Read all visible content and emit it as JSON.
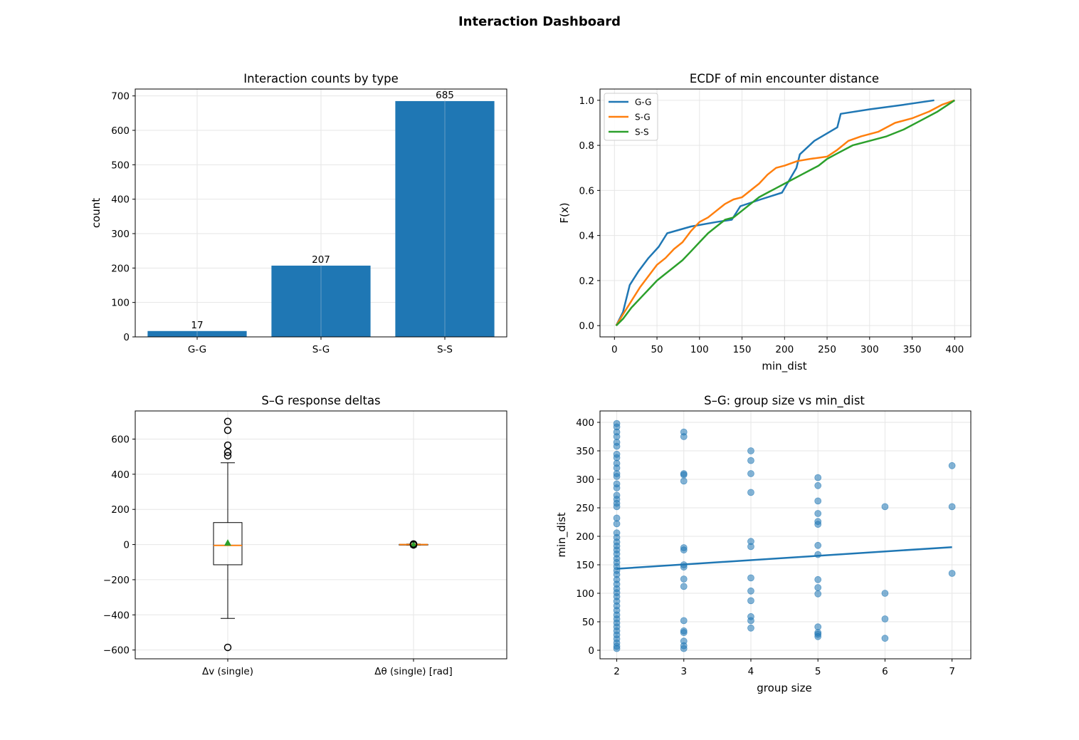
{
  "suptitle": "Interaction Dashboard",
  "colors": {
    "blue": "#1f77b4",
    "orange": "#ff7f0e",
    "green": "#2ca02c",
    "grid": "#e6e6e6"
  },
  "chart_data": [
    {
      "type": "bar",
      "title": "Interaction counts by type",
      "xlabel": "",
      "ylabel": "count",
      "categories": [
        "G-G",
        "S-G",
        "S-S"
      ],
      "values": [
        17,
        207,
        685
      ],
      "bar_labels": [
        "17",
        "207",
        "685"
      ],
      "ylim": [
        0,
        720
      ],
      "yticks": [
        0,
        100,
        200,
        300,
        400,
        500,
        600,
        700
      ],
      "grid": true
    },
    {
      "type": "line",
      "title": "ECDF of min encounter distance",
      "xlabel": "min_dist",
      "ylabel": "F(x)",
      "xlim": [
        -17,
        419
      ],
      "ylim": [
        -0.05,
        1.05
      ],
      "xticks": [
        0,
        50,
        100,
        150,
        200,
        250,
        300,
        350,
        400
      ],
      "yticks": [
        0.0,
        0.2,
        0.4,
        0.6,
        0.8,
        1.0
      ],
      "ytick_labels": [
        "0.0",
        "0.2",
        "0.4",
        "0.6",
        "0.8",
        "1.0"
      ],
      "legend": "top-left",
      "grid": true,
      "series": [
        {
          "name": "G-G",
          "color": "#1f77b4",
          "x": [
            2,
            10,
            18,
            28,
            40,
            52,
            62,
            90,
            120,
            138,
            148,
            172,
            197,
            214,
            218,
            235,
            262,
            266,
            300,
            340,
            376
          ],
          "y": [
            0.0,
            0.06,
            0.18,
            0.24,
            0.3,
            0.35,
            0.41,
            0.44,
            0.46,
            0.47,
            0.53,
            0.56,
            0.59,
            0.7,
            0.76,
            0.82,
            0.88,
            0.94,
            0.96,
            0.98,
            1.0
          ]
        },
        {
          "name": "S-G",
          "color": "#ff7f0e",
          "x": [
            2,
            10,
            20,
            30,
            40,
            50,
            60,
            70,
            80,
            90,
            100,
            110,
            120,
            130,
            140,
            150,
            160,
            170,
            180,
            190,
            200,
            215,
            230,
            250,
            262,
            275,
            290,
            310,
            330,
            350,
            370,
            385,
            400
          ],
          "y": [
            0.0,
            0.05,
            0.11,
            0.17,
            0.22,
            0.27,
            0.3,
            0.34,
            0.37,
            0.42,
            0.46,
            0.48,
            0.51,
            0.54,
            0.56,
            0.57,
            0.6,
            0.63,
            0.67,
            0.7,
            0.71,
            0.73,
            0.74,
            0.75,
            0.78,
            0.82,
            0.84,
            0.86,
            0.9,
            0.92,
            0.95,
            0.98,
            1.0
          ]
        },
        {
          "name": "S-S",
          "color": "#2ca02c",
          "x": [
            2,
            10,
            20,
            30,
            40,
            50,
            60,
            70,
            80,
            90,
            100,
            110,
            120,
            130,
            140,
            150,
            160,
            170,
            180,
            190,
            200,
            210,
            220,
            230,
            240,
            250,
            260,
            280,
            300,
            320,
            340,
            360,
            380,
            400
          ],
          "y": [
            0.0,
            0.03,
            0.08,
            0.12,
            0.16,
            0.2,
            0.23,
            0.26,
            0.29,
            0.33,
            0.37,
            0.41,
            0.44,
            0.47,
            0.48,
            0.51,
            0.54,
            0.57,
            0.59,
            0.61,
            0.63,
            0.65,
            0.67,
            0.69,
            0.71,
            0.74,
            0.76,
            0.8,
            0.82,
            0.84,
            0.87,
            0.91,
            0.95,
            1.0
          ]
        }
      ]
    },
    {
      "type": "box",
      "title": "S–G response deltas",
      "xlabel": "",
      "ylabel": "",
      "categories": [
        "Δv (single)",
        "Δθ (single) [rad]"
      ],
      "ylim": [
        -650,
        760
      ],
      "yticks": [
        -600,
        -400,
        -200,
        0,
        200,
        400,
        600
      ],
      "ytick_labels": [
        "−600",
        "−400",
        "−200",
        "0",
        "200",
        "400",
        "600"
      ],
      "grid": true,
      "boxes": [
        {
          "q1": -115,
          "median": -5,
          "q3": 125,
          "whisker_low": -420,
          "whisker_high": 465,
          "mean": 10,
          "outliers": [
            700,
            650,
            565,
            525,
            505,
            -585
          ]
        },
        {
          "q1": -1,
          "median": 0,
          "q3": 1,
          "whisker_low": -3,
          "whisker_high": 3,
          "mean": 0,
          "outliers": [
            3,
            2,
            -2
          ]
        }
      ]
    },
    {
      "type": "scatter",
      "title": "S–G: group size vs min_dist",
      "xlabel": "group size",
      "ylabel": "min_dist",
      "xlim": [
        1.75,
        7.28
      ],
      "ylim": [
        -15,
        420
      ],
      "xticks": [
        2,
        3,
        4,
        5,
        6,
        7
      ],
      "yticks": [
        0,
        50,
        100,
        150,
        200,
        250,
        300,
        350,
        400
      ],
      "grid": true,
      "points": [
        [
          2,
          398
        ],
        [
          2,
          392
        ],
        [
          2,
          383
        ],
        [
          2,
          375
        ],
        [
          2,
          365
        ],
        [
          2,
          358
        ],
        [
          2,
          344
        ],
        [
          2,
          338
        ],
        [
          2,
          328
        ],
        [
          2,
          320
        ],
        [
          2,
          310
        ],
        [
          2,
          305
        ],
        [
          2,
          292
        ],
        [
          2,
          285
        ],
        [
          2,
          272
        ],
        [
          2,
          265
        ],
        [
          2,
          258
        ],
        [
          2,
          252
        ],
        [
          2,
          232
        ],
        [
          2,
          222
        ],
        [
          2,
          206
        ],
        [
          2,
          198
        ],
        [
          2,
          190
        ],
        [
          2,
          183
        ],
        [
          2,
          176
        ],
        [
          2,
          169
        ],
        [
          2,
          161
        ],
        [
          2,
          154
        ],
        [
          2,
          147
        ],
        [
          2,
          140
        ],
        [
          2,
          133
        ],
        [
          2,
          124
        ],
        [
          2,
          116
        ],
        [
          2,
          108
        ],
        [
          2,
          101
        ],
        [
          2,
          94
        ],
        [
          2,
          86
        ],
        [
          2,
          78
        ],
        [
          2,
          70
        ],
        [
          2,
          62
        ],
        [
          2,
          55
        ],
        [
          2,
          48
        ],
        [
          2,
          41
        ],
        [
          2,
          34
        ],
        [
          2,
          27
        ],
        [
          2,
          20
        ],
        [
          2,
          13
        ],
        [
          2,
          7
        ],
        [
          2,
          3
        ],
        [
          3,
          383
        ],
        [
          3,
          375
        ],
        [
          3,
          310
        ],
        [
          3,
          308
        ],
        [
          3,
          297
        ],
        [
          3,
          180
        ],
        [
          3,
          176
        ],
        [
          3,
          150
        ],
        [
          3,
          146
        ],
        [
          3,
          125
        ],
        [
          3,
          112
        ],
        [
          3,
          52
        ],
        [
          3,
          34
        ],
        [
          3,
          31
        ],
        [
          3,
          16
        ],
        [
          3,
          8
        ],
        [
          3,
          3
        ],
        [
          4,
          350
        ],
        [
          4,
          333
        ],
        [
          4,
          310
        ],
        [
          4,
          277
        ],
        [
          4,
          191
        ],
        [
          4,
          182
        ],
        [
          4,
          127
        ],
        [
          4,
          104
        ],
        [
          4,
          87
        ],
        [
          4,
          59
        ],
        [
          4,
          52
        ],
        [
          4,
          39
        ],
        [
          5,
          303
        ],
        [
          5,
          289
        ],
        [
          5,
          262
        ],
        [
          5,
          240
        ],
        [
          5,
          226
        ],
        [
          5,
          221
        ],
        [
          5,
          184
        ],
        [
          5,
          168
        ],
        [
          5,
          124
        ],
        [
          5,
          110
        ],
        [
          5,
          99
        ],
        [
          5,
          41
        ],
        [
          5,
          31
        ],
        [
          5,
          28
        ],
        [
          5,
          24
        ],
        [
          6,
          252
        ],
        [
          6,
          100
        ],
        [
          6,
          55
        ],
        [
          6,
          21
        ],
        [
          7,
          324
        ],
        [
          7,
          252
        ],
        [
          7,
          135
        ]
      ],
      "fit_line": {
        "x": [
          2,
          7
        ],
        "y": [
          143,
          181
        ]
      }
    }
  ]
}
